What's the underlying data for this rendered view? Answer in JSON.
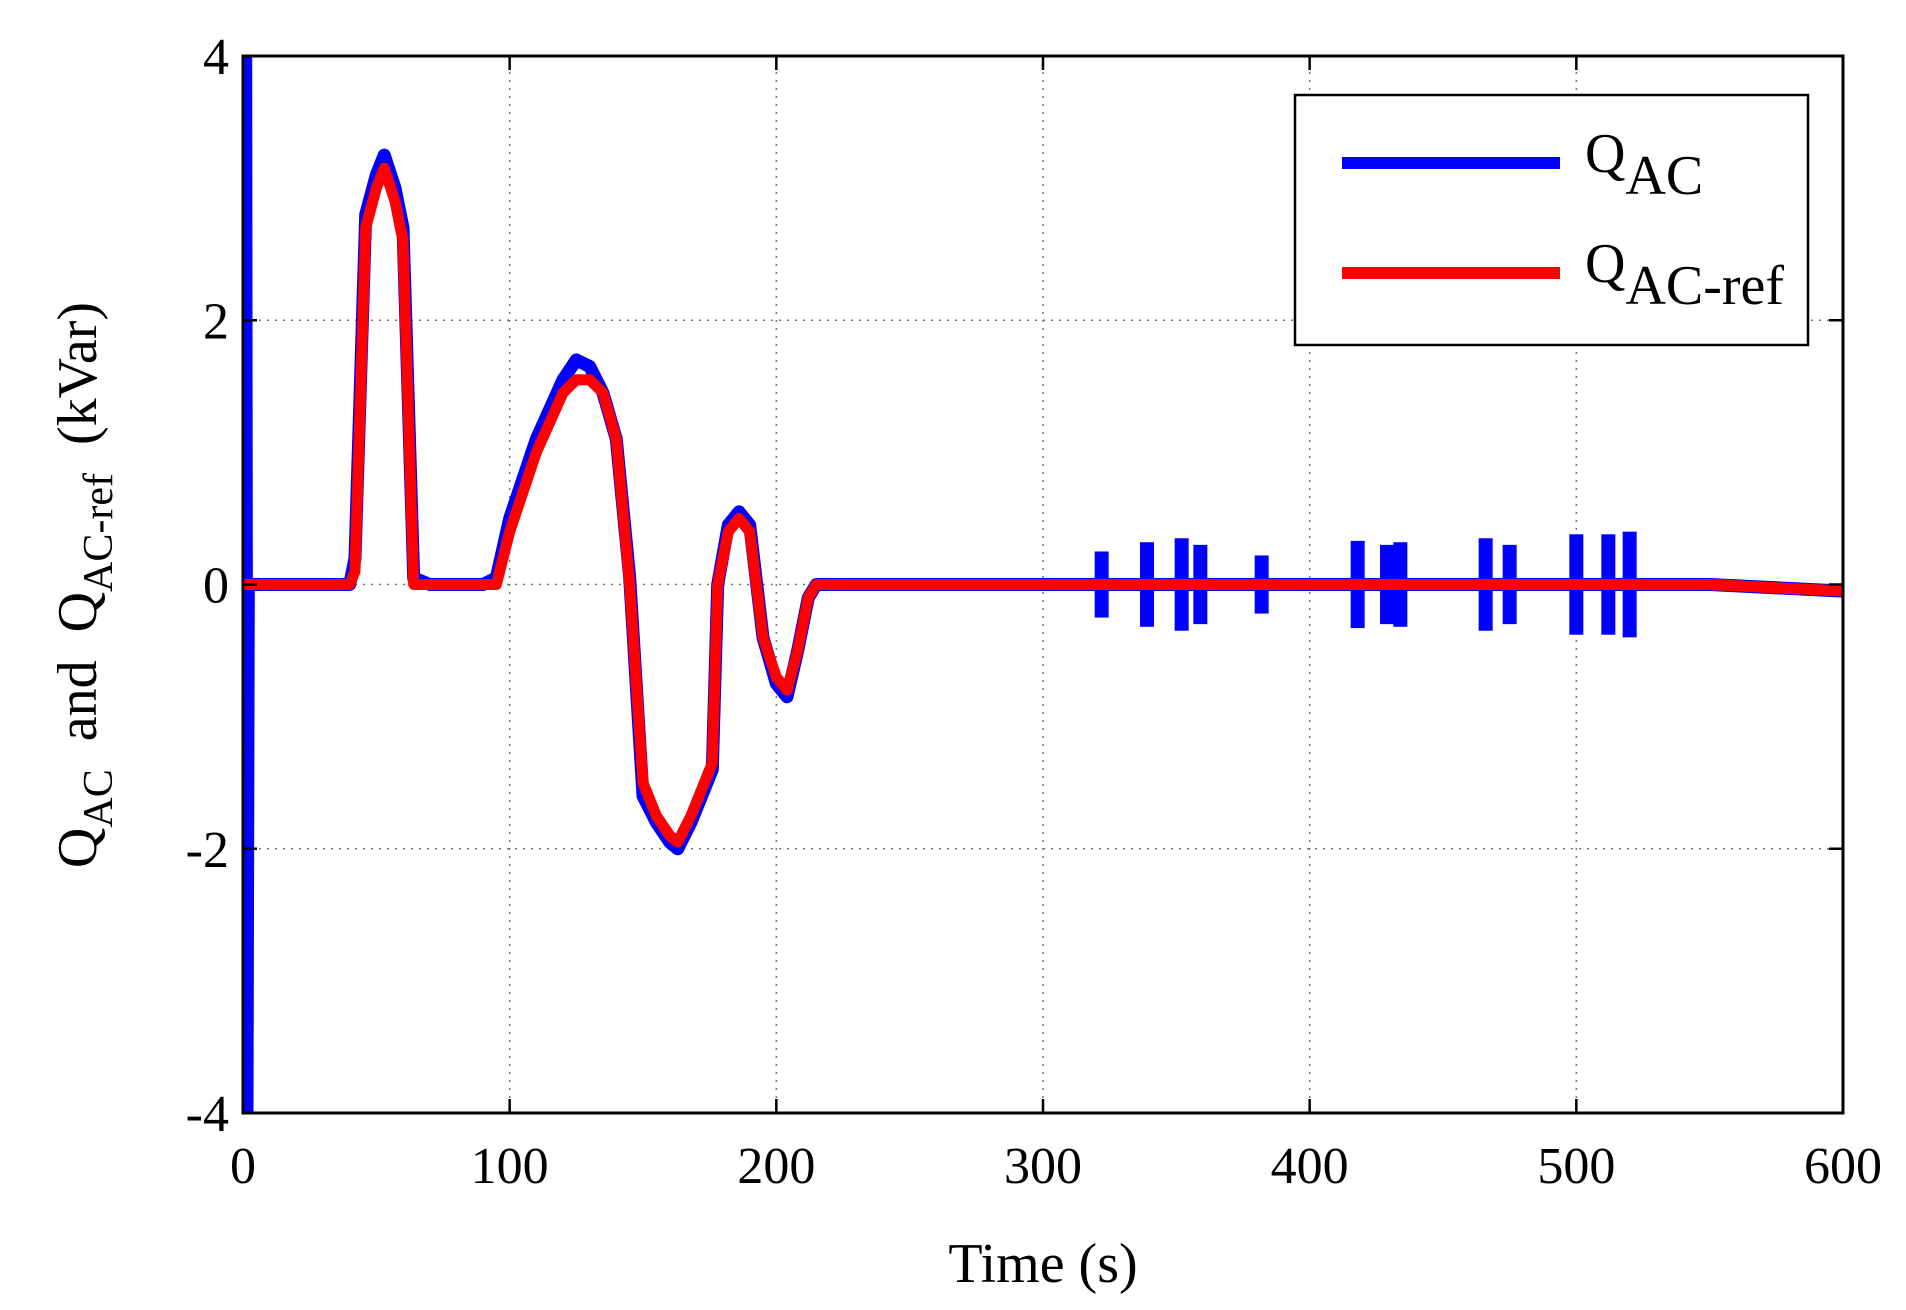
{
  "chart_data": {
    "type": "line",
    "title": "",
    "xlabel": "Time  (s)",
    "ylabel": {
      "q1": "Q",
      "s1": "AC",
      "mid": "  and  ",
      "q2": "Q",
      "s2": "AC-ref",
      "unit": "  (kVar)"
    },
    "xlim": [
      0,
      600
    ],
    "ylim": [
      -4,
      4
    ],
    "xticks": [
      0,
      100,
      200,
      300,
      400,
      500,
      600
    ],
    "yticks": [
      4,
      2,
      0,
      -2,
      -4
    ],
    "xtick_labels": [
      "0",
      "100",
      "200",
      "300",
      "400",
      "500",
      "600"
    ],
    "ytick_labels": [
      "4",
      "2",
      "0",
      "-2",
      "-4"
    ],
    "grid": true,
    "legend_position": "top-right",
    "series": [
      {
        "name": "Q_AC",
        "legend_main": "Q",
        "legend_sub": "AC",
        "color": "#0000FF",
        "x": [
          0,
          1,
          1.5,
          2,
          40,
          42,
          46,
          50,
          53,
          57,
          60,
          64,
          70,
          80,
          90,
          95,
          100,
          110,
          120,
          125,
          130,
          135,
          140,
          145,
          150,
          155,
          160,
          163,
          168,
          172,
          176,
          178,
          182,
          186,
          190,
          195,
          200,
          204,
          208,
          212,
          215,
          250,
          300,
          350,
          400,
          450,
          500,
          550,
          600
        ],
        "y": [
          0,
          4,
          -4,
          0,
          0,
          0.2,
          2.8,
          3.1,
          3.25,
          3.0,
          2.7,
          0.05,
          0,
          0,
          0,
          0.05,
          0.5,
          1.1,
          1.55,
          1.7,
          1.65,
          1.45,
          1.1,
          0.05,
          -1.6,
          -1.8,
          -1.95,
          -2.0,
          -1.8,
          -1.6,
          -1.4,
          0.0,
          0.45,
          0.55,
          0.45,
          -0.4,
          -0.75,
          -0.85,
          -0.5,
          -0.1,
          0,
          0,
          0,
          0,
          0,
          0,
          0,
          0,
          -0.05
        ],
        "bursts": [
          {
            "x": 322,
            "h": 0.25
          },
          {
            "x": 339,
            "h": 0.32
          },
          {
            "x": 352,
            "h": 0.35
          },
          {
            "x": 359,
            "h": 0.3
          },
          {
            "x": 382,
            "h": 0.22
          },
          {
            "x": 418,
            "h": 0.33
          },
          {
            "x": 429,
            "h": 0.3
          },
          {
            "x": 434,
            "h": 0.32
          },
          {
            "x": 466,
            "h": 0.35
          },
          {
            "x": 475,
            "h": 0.3
          },
          {
            "x": 500,
            "h": 0.38
          },
          {
            "x": 512,
            "h": 0.38
          },
          {
            "x": 520,
            "h": 0.4
          }
        ]
      },
      {
        "name": "Q_AC-ref",
        "legend_main": "Q",
        "legend_sub": "AC-ref",
        "color": "#FF0000",
        "x": [
          0,
          40,
          42,
          46,
          50,
          53,
          57,
          60,
          64,
          70,
          80,
          90,
          95,
          100,
          110,
          120,
          125,
          130,
          135,
          140,
          145,
          150,
          155,
          160,
          163,
          168,
          172,
          176,
          178,
          182,
          186,
          190,
          195,
          200,
          204,
          208,
          212,
          215,
          250,
          300,
          350,
          400,
          450,
          500,
          550,
          600
        ],
        "y": [
          0,
          0,
          0.1,
          2.7,
          3.0,
          3.15,
          2.9,
          2.6,
          0.0,
          0,
          0,
          0,
          0,
          0.4,
          1.0,
          1.45,
          1.55,
          1.55,
          1.45,
          1.1,
          0.0,
          -1.5,
          -1.75,
          -1.9,
          -1.95,
          -1.75,
          -1.55,
          -1.35,
          0.0,
          0.4,
          0.5,
          0.4,
          -0.4,
          -0.7,
          -0.8,
          -0.5,
          -0.1,
          0,
          0,
          0,
          0,
          0,
          0,
          0,
          0,
          -0.05
        ]
      }
    ]
  }
}
